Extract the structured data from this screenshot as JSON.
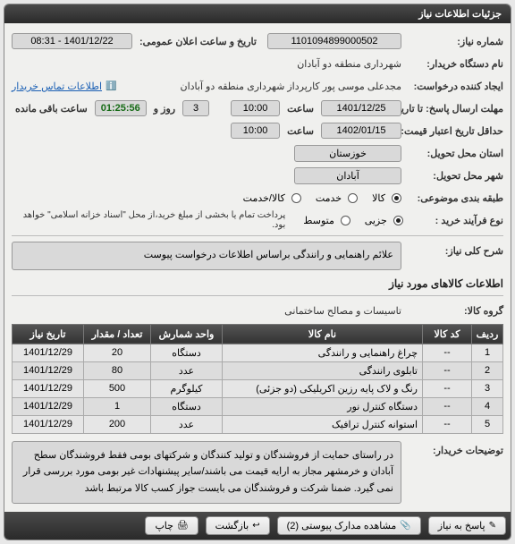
{
  "panel": {
    "title": "جزئیات اطلاعات نیاز"
  },
  "fields": {
    "req_no_lbl": "شماره نیاز:",
    "req_no": "1101094899000502",
    "ann_lbl": "تاریخ و ساعت اعلان عمومی:",
    "ann_val": "1401/12/22 - 08:31",
    "org_lbl": "نام دستگاه خریدار:",
    "org_val": "شهرداری منطقه دو آبادان",
    "creator_lbl": "ایجاد کننده درخواست:",
    "creator_val": "مجدعلی موسی پور کارپرداز شهرداری منطقه دو آبادان",
    "contact_link": "اطلاعات تماس خریدار",
    "deadline_lbl": "مهلت ارسال پاسخ: تا تاریخ:",
    "deadline_date": "1401/12/25",
    "hour_lbl": "ساعت",
    "deadline_hour": "10:00",
    "day_lbl": "روز و",
    "day_val": "3",
    "timer": "01:25:56",
    "remain_lbl": "ساعت باقی مانده",
    "valid_lbl": "حداقل تاریخ اعتبار قیمت: تا تاریخ:",
    "valid_date": "1402/01/15",
    "valid_hour": "10:00",
    "province_lbl": "استان محل تحویل:",
    "province": "خوزستان",
    "city_lbl": "شهر محل تحویل:",
    "city": "آبادان",
    "class_lbl": "طبقه بندی موضوعی:",
    "r_kala": "کالا",
    "r_khadamat": "خدمت",
    "r_both": "کالا/خدمت",
    "proc_lbl": "نوع فرآیند خرید :",
    "r_jozi": "جزیی",
    "r_motavaset": "متوسط",
    "proc_note": "پرداخت تمام یا بخشی از مبلغ خرید،از محل \"اسناد خزانه اسلامی\" خواهد بود.",
    "desc_title": "شرح کلی نیاز:",
    "desc_text": "علائم راهنمایی و رانندگی براساس اطلاعات درخواست پیوست",
    "goods_section": "اطلاعات کالاهای مورد نیاز",
    "group_lbl": "گروه کالا:",
    "group_val": "تاسیسات و مصالح ساختمانی",
    "buyer_note_lbl": "توضیحات خریدار:",
    "buyer_note": "در راستای حمایت از فروشندگان و تولید کنندگان و شرکتهای بومی فقط فروشندگان سطح آبادان و خرمشهر مجاز به ارایه قیمت می باشند/سایر پیشنهادات غیر بومی مورد بررسی قرار نمی گیرد. ضمنا شرکت و فروشندگان می بایست جواز کسب کالا مرتبط باشد"
  },
  "table": {
    "headers": [
      "ردیف",
      "کد کالا",
      "نام کالا",
      "واحد شمارش",
      "تعداد / مقدار",
      "تاریخ نیاز"
    ],
    "rows": [
      [
        "1",
        "--",
        "چراغ راهنمایی و رانندگی",
        "دستگاه",
        "20",
        "1401/12/29"
      ],
      [
        "2",
        "--",
        "تابلوی رانندگی",
        "عدد",
        "80",
        "1401/12/29"
      ],
      [
        "3",
        "--",
        "رنگ و لاک پایه رزین اکریلیکی (دو جزئی)",
        "کیلوگرم",
        "500",
        "1401/12/29"
      ],
      [
        "4",
        "--",
        "دستگاه کنترل نور",
        "دستگاه",
        "1",
        "1401/12/29"
      ],
      [
        "5",
        "--",
        "استوانه کنترل ترافیک",
        "عدد",
        "200",
        "1401/12/29"
      ]
    ]
  },
  "footer": {
    "reply": "پاسخ به نیاز",
    "attach": "مشاهده مدارک پیوستی (2)",
    "back": "بازگشت",
    "print": "چاپ"
  }
}
